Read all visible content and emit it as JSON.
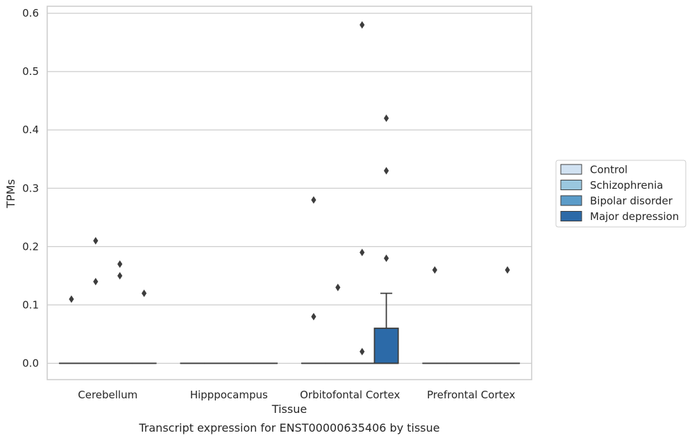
{
  "chart_data": {
    "type": "box",
    "title": "",
    "caption": "Transcript expression for ENST00000635406 by tissue",
    "xlabel": "Tissue",
    "ylabel": "TPMs",
    "ylim": [
      -0.028,
      0.612
    ],
    "yticks": [
      0.0,
      0.1,
      0.2,
      0.3,
      0.4,
      0.5,
      0.6
    ],
    "ytick_labels": [
      "0.0",
      "0.1",
      "0.2",
      "0.3",
      "0.4",
      "0.5",
      "0.6"
    ],
    "grid": "horizontal",
    "legend_position": "right",
    "categories": [
      "Cerebellum",
      "Hipppocampus",
      "Orbitofontal Cortex",
      "Prefrontal Cortex"
    ],
    "series": [
      {
        "name": "Control",
        "color": "#d1e2f2",
        "boxes": [
          {
            "category": "Cerebellum",
            "whisker_low": 0,
            "q1": 0,
            "median": 0,
            "q3": 0,
            "whisker_high": 0,
            "outliers": [
              0.11
            ]
          },
          {
            "category": "Hipppocampus",
            "whisker_low": 0,
            "q1": 0,
            "median": 0,
            "q3": 0,
            "whisker_high": 0,
            "outliers": []
          },
          {
            "category": "Orbitofontal Cortex",
            "whisker_low": 0,
            "q1": 0,
            "median": 0,
            "q3": 0,
            "whisker_high": 0,
            "outliers": [
              0.28,
              0.08
            ]
          },
          {
            "category": "Prefrontal Cortex",
            "whisker_low": 0,
            "q1": 0,
            "median": 0,
            "q3": 0,
            "whisker_high": 0,
            "outliers": [
              0.16
            ]
          }
        ]
      },
      {
        "name": "Schizophrenia",
        "color": "#9ac7df",
        "boxes": [
          {
            "category": "Cerebellum",
            "whisker_low": 0,
            "q1": 0,
            "median": 0,
            "q3": 0,
            "whisker_high": 0,
            "outliers": [
              0.21,
              0.14
            ]
          },
          {
            "category": "Hipppocampus",
            "whisker_low": 0,
            "q1": 0,
            "median": 0,
            "q3": 0,
            "whisker_high": 0,
            "outliers": []
          },
          {
            "category": "Orbitofontal Cortex",
            "whisker_low": 0,
            "q1": 0,
            "median": 0,
            "q3": 0,
            "whisker_high": 0,
            "outliers": [
              0.13
            ]
          },
          {
            "category": "Prefrontal Cortex",
            "whisker_low": 0,
            "q1": 0,
            "median": 0,
            "q3": 0,
            "whisker_high": 0,
            "outliers": []
          }
        ]
      },
      {
        "name": "Bipolar disorder",
        "color": "#5b9cc9",
        "boxes": [
          {
            "category": "Cerebellum",
            "whisker_low": 0,
            "q1": 0,
            "median": 0,
            "q3": 0,
            "whisker_high": 0,
            "outliers": [
              0.17,
              0.15
            ]
          },
          {
            "category": "Hipppocampus",
            "whisker_low": 0,
            "q1": 0,
            "median": 0,
            "q3": 0,
            "whisker_high": 0,
            "outliers": []
          },
          {
            "category": "Orbitofontal Cortex",
            "whisker_low": 0,
            "q1": 0,
            "median": 0,
            "q3": 0,
            "whisker_high": 0,
            "outliers": [
              0.58,
              0.19,
              0.02
            ]
          },
          {
            "category": "Prefrontal Cortex",
            "whisker_low": 0,
            "q1": 0,
            "median": 0,
            "q3": 0,
            "whisker_high": 0,
            "outliers": []
          }
        ]
      },
      {
        "name": "Major depression",
        "color": "#2c6aa8",
        "boxes": [
          {
            "category": "Cerebellum",
            "whisker_low": 0,
            "q1": 0,
            "median": 0,
            "q3": 0,
            "whisker_high": 0,
            "outliers": [
              0.12
            ]
          },
          {
            "category": "Hipppocampus",
            "whisker_low": 0,
            "q1": 0,
            "median": 0,
            "q3": 0,
            "whisker_high": 0,
            "outliers": []
          },
          {
            "category": "Orbitofontal Cortex",
            "whisker_low": 0,
            "q1": 0,
            "median": 0,
            "q3": 0.06,
            "whisker_high": 0.12,
            "outliers": [
              0.42,
              0.33,
              0.18
            ]
          },
          {
            "category": "Prefrontal Cortex",
            "whisker_low": 0,
            "q1": 0,
            "median": 0,
            "q3": 0,
            "whisker_high": 0,
            "outliers": [
              0.16
            ]
          }
        ]
      }
    ],
    "colors": {
      "grid": "#cccccc",
      "spine": "#cccccc",
      "line": "#3d3d3d",
      "outlier": "#3d3d3d"
    }
  }
}
